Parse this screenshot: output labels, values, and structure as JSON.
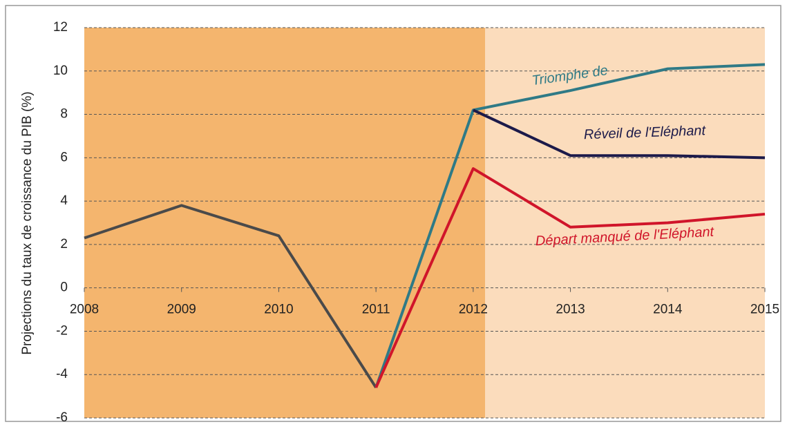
{
  "chart_data": {
    "type": "line",
    "y_label": "Projections du taux de croissance du PIB (%)",
    "x": [
      2008,
      2009,
      2010,
      2011,
      2012,
      2013,
      2014,
      2015
    ],
    "xlim": [
      2008,
      2015
    ],
    "xticks": [
      2008,
      2009,
      2010,
      2011,
      2012,
      2013,
      2014,
      2015
    ],
    "ylim": [
      -6,
      12
    ],
    "yticks": [
      -6,
      -4,
      -2,
      0,
      2,
      4,
      6,
      8,
      10,
      12
    ],
    "grid": true,
    "series": [
      {
        "color": "#4a4a4a",
        "values": [
          2.3,
          3.8,
          2.4,
          -4.6,
          null,
          null,
          null,
          null
        ]
      },
      {
        "name": "Triomphe de",
        "color": "#2f7a86",
        "values": [
          null,
          null,
          null,
          -4.6,
          8.2,
          9.1,
          10.1,
          10.3
        ]
      },
      {
        "name": "Réveil de l'Eléphant",
        "color": "#1c1a4a",
        "values": [
          null,
          null,
          null,
          null,
          8.2,
          6.1,
          6.1,
          6.0
        ]
      },
      {
        "name": "Départ manqué de l'Eléphant",
        "color": "#d0152a",
        "values": [
          null,
          null,
          null,
          -4.6,
          5.5,
          2.8,
          3.0,
          3.4
        ]
      }
    ]
  }
}
